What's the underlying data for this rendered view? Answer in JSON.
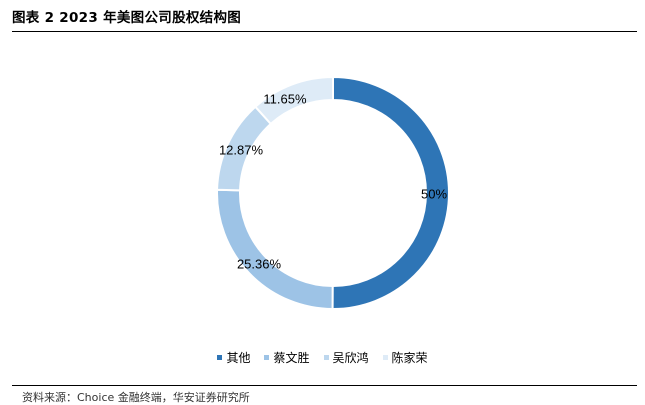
{
  "title": "图表 2 2023 年美图公司股权结构图",
  "source": "资料来源：Choice 金融终端，华安证券研究所",
  "colors": {
    "其他": "#2e75b6",
    "蔡文胜": "#9dc3e6",
    "吴欣鸿": "#bdd7ee",
    "陈家荣": "#deebf7"
  },
  "chart_data": {
    "type": "pie",
    "title": "",
    "series": [
      {
        "values": [
          50,
          25.36,
          12.87,
          11.65
        ],
        "labels": [
          "50%",
          "25.36%",
          "12.87%",
          "11.65%"
        ]
      }
    ],
    "categories": [
      "其他",
      "蔡文胜",
      "吴欣鸿",
      "陈家荣"
    ],
    "legend": "bottom",
    "donut": true
  }
}
